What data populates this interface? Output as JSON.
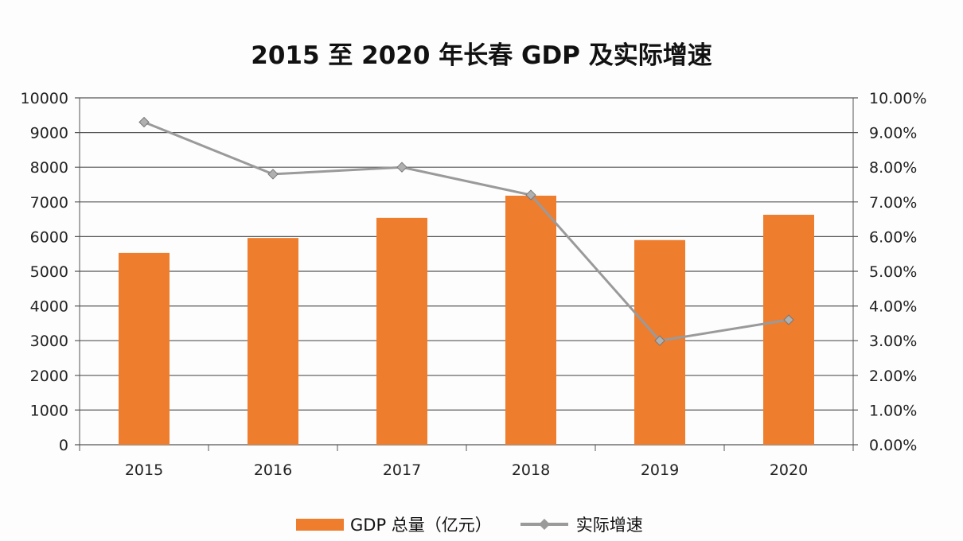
{
  "chart_data": {
    "type": "bar+line",
    "title": "2015 至 2020 年长春 GDP 及实际增速",
    "categories": [
      "2015",
      "2016",
      "2017",
      "2018",
      "2019",
      "2020"
    ],
    "series": [
      {
        "name": "GDP 总量（亿元）",
        "type": "bar",
        "axis": "left",
        "color": "#ef7d2e",
        "values": [
          5530,
          5960,
          6540,
          7180,
          5900,
          6630
        ]
      },
      {
        "name": "实际增速",
        "type": "line",
        "axis": "right",
        "color": "#9a9a9a",
        "marker": "diamond",
        "values": [
          9.3,
          7.8,
          8.0,
          7.2,
          3.0,
          3.6
        ]
      }
    ],
    "left_axis": {
      "range": [
        0,
        10000
      ],
      "ticks": [
        "0",
        "1000",
        "2000",
        "3000",
        "4000",
        "5000",
        "6000",
        "7000",
        "8000",
        "9000",
        "10000"
      ]
    },
    "right_axis": {
      "range": [
        0,
        10
      ],
      "ticks": [
        "0.00%",
        "1.00%",
        "2.00%",
        "3.00%",
        "4.00%",
        "5.00%",
        "6.00%",
        "7.00%",
        "8.00%",
        "9.00%",
        "10.00%"
      ]
    },
    "grid": true,
    "legend": "bottom"
  }
}
